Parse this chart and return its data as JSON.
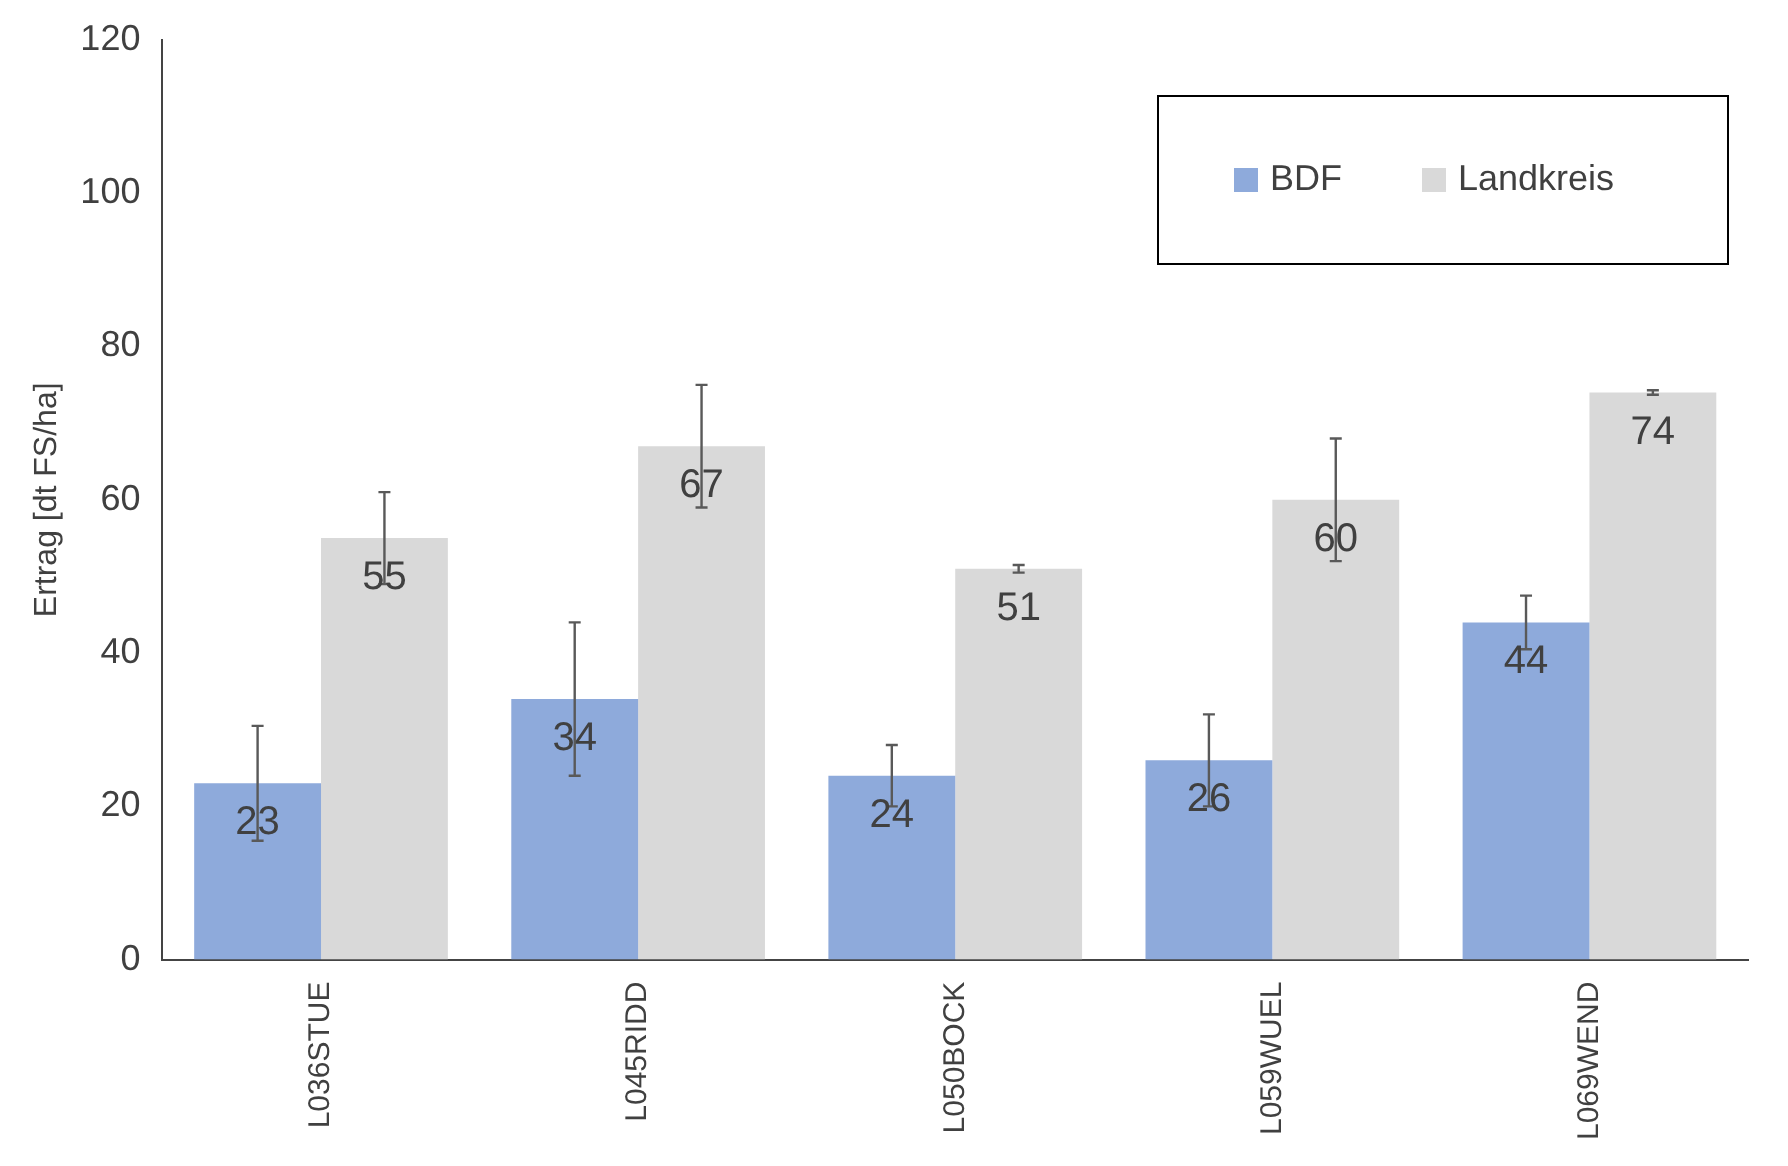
{
  "chart_data": {
    "type": "bar",
    "ylabel": "Ertrag [dt FS/ha]",
    "categories": [
      "L036STUE",
      "L045RIDD",
      "L050BOCK",
      "L059WUEL",
      "L069WEND"
    ],
    "series": [
      {
        "name": "BDF",
        "color": "#8eaadb",
        "values": [
          23,
          34,
          24,
          26,
          44
        ],
        "errors": [
          7.5,
          10,
          4,
          6,
          3.5
        ]
      },
      {
        "name": "Landkreis",
        "color": "#d9d9d9",
        "values": [
          55,
          67,
          51,
          60,
          74
        ],
        "errors": [
          6,
          8,
          0.5,
          8,
          0.3
        ]
      }
    ],
    "ylim": [
      0,
      120
    ],
    "yticks": [
      0,
      20,
      40,
      60,
      80,
      100,
      120
    ],
    "grid": false,
    "legend": "top right",
    "data_labels": true
  }
}
